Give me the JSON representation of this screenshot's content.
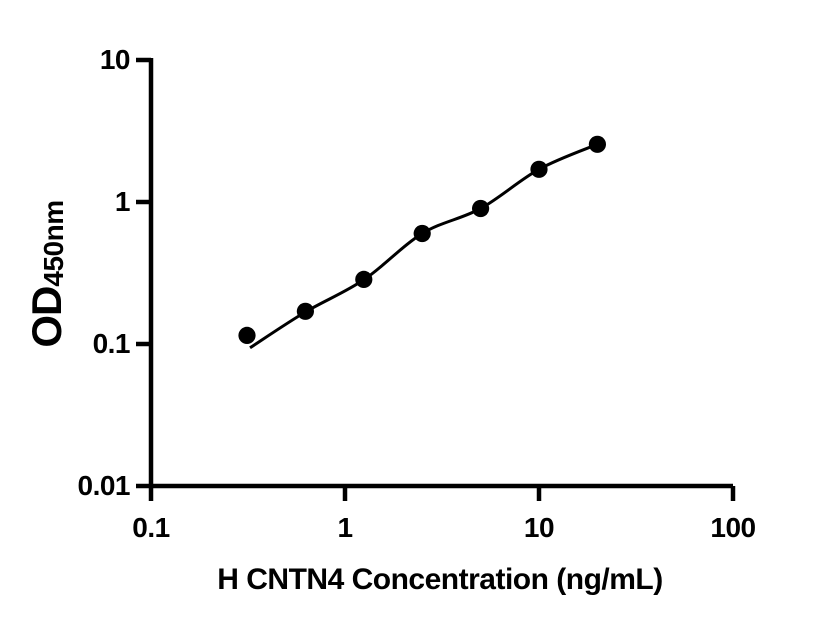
{
  "chart_data": {
    "type": "scatter",
    "title": "",
    "xlabel": "H CNTN4 Concentration (ng/mL)",
    "ylabel": "OD",
    "ylabel_sub": "450nm",
    "x_scale": "log",
    "y_scale": "log",
    "xlim": [
      0.1,
      100
    ],
    "ylim": [
      0.01,
      10
    ],
    "grid": false,
    "legend": false,
    "x_ticks": [
      {
        "value": 0.1,
        "label": "0.1"
      },
      {
        "value": 1,
        "label": "1"
      },
      {
        "value": 10,
        "label": "10"
      },
      {
        "value": 100,
        "label": "100"
      }
    ],
    "y_ticks": [
      {
        "value": 10,
        "label": "10"
      },
      {
        "value": 1,
        "label": "1"
      },
      {
        "value": 0.1,
        "label": "0.1"
      },
      {
        "value": 0.01,
        "label": "0.01"
      }
    ],
    "points": [
      {
        "x": 0.3125,
        "y": 0.115
      },
      {
        "x": 0.625,
        "y": 0.17
      },
      {
        "x": 1.25,
        "y": 0.285
      },
      {
        "x": 2.5,
        "y": 0.6
      },
      {
        "x": 5,
        "y": 0.9
      },
      {
        "x": 10,
        "y": 1.7
      },
      {
        "x": 20,
        "y": 2.55
      }
    ],
    "fit_line": [
      [
        0.324,
        0.094
      ],
      [
        0.625,
        0.168
      ],
      [
        1.25,
        0.283
      ],
      [
        2.5,
        0.6
      ],
      [
        5,
        0.9
      ],
      [
        10,
        1.7
      ],
      [
        20,
        2.55
      ]
    ]
  },
  "colors": {
    "marker": "#000000",
    "curve": "#000000",
    "axis": "#000000",
    "text": "#000000",
    "background": "#ffffff"
  }
}
